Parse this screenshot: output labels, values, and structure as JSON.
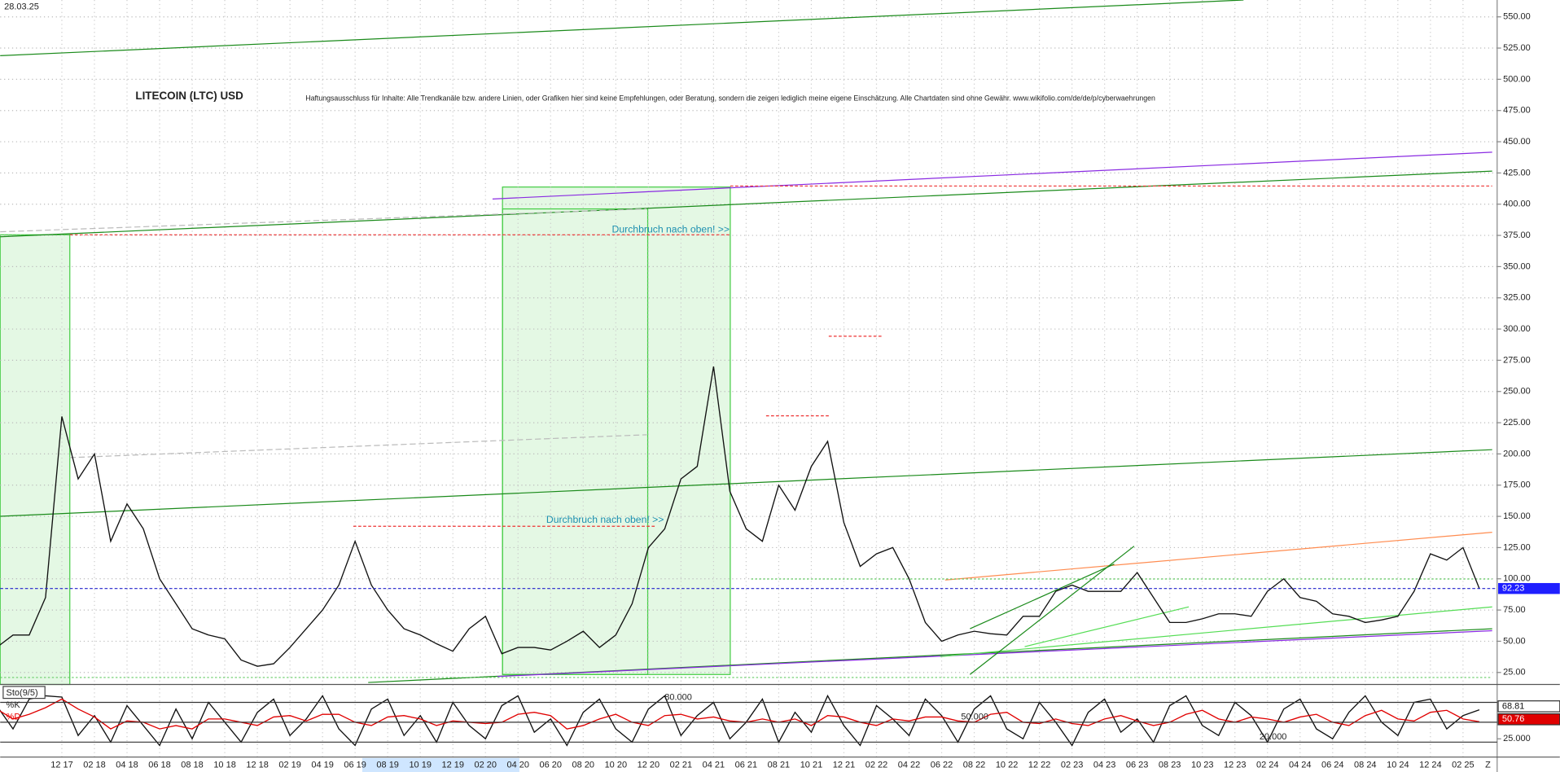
{
  "chart_data": [
    {
      "type": "line",
      "title": "LITECOIN (LTC) USD",
      "subtitle": "Haftungsausschluss für Inhalte: Alle Trendkanäle bzw. andere Linien, oder Grafiken hier sind keine Empfehlungen, oder Beratung, sondern die zeigen lediglich meine eigene Einschätzung. Alle Chartdaten sind ohne Gewähr. www.wikifolio.com/de/de/p/cyberwaehrungen",
      "date": "28.03.25",
      "annotations": [
        "Durchbruch nach oben! >>",
        "Durchbruch nach oben! >>"
      ],
      "end_label": "Z",
      "categories": [
        null,
        null,
        null,
        null,
        "12 17",
        null,
        "02 18",
        null,
        "04 18",
        null,
        "06 18",
        null,
        "08 18",
        null,
        "10 18",
        null,
        "12 18",
        null,
        "02 19",
        null,
        "04 19",
        null,
        "06 19",
        null,
        "08 19",
        null,
        "10 19",
        null,
        "12 19",
        null,
        "02 20",
        null,
        "04 20",
        null,
        "06 20",
        null,
        "08 20",
        null,
        "10 20",
        null,
        "12 20",
        null,
        "02 21",
        null,
        "04 21",
        null,
        "06 21",
        null,
        "08 21",
        null,
        "10 21",
        null,
        "12 21",
        null,
        "02 22",
        null,
        "04 22",
        null,
        "06 22",
        null,
        "08 22",
        null,
        "10 22",
        null,
        "12 22",
        null,
        "02 23",
        null,
        "04 23",
        null,
        "06 23",
        null,
        "08 23",
        null,
        "10 23",
        null,
        "12 23",
        null,
        "02 24",
        null,
        "04 24",
        null,
        "06 24",
        null,
        "08 24",
        null,
        "10 24",
        null,
        "12 24",
        null,
        "02 25",
        null
      ],
      "values": [
        45,
        55,
        55,
        85,
        230,
        180,
        200,
        130,
        160,
        140,
        100,
        80,
        60,
        55,
        52,
        35,
        30,
        32,
        45,
        60,
        75,
        95,
        130,
        95,
        75,
        60,
        55,
        48,
        42,
        60,
        70,
        40,
        45,
        45,
        43,
        50,
        58,
        45,
        55,
        80,
        125,
        140,
        180,
        190,
        270,
        170,
        140,
        130,
        175,
        155,
        190,
        210,
        145,
        110,
        120,
        125,
        100,
        65,
        50,
        55,
        58,
        56,
        55,
        70,
        70,
        90,
        95,
        90,
        90,
        90,
        105,
        85,
        65,
        65,
        68,
        72,
        72,
        70,
        90,
        100,
        85,
        82,
        72,
        70,
        65,
        67,
        70,
        90,
        120,
        115,
        125,
        92.23
      ],
      "color": "#111111",
      "ylim": [
        15.4,
        563.5
      ],
      "yticks": [
        {
          "value": 25,
          "label": "25.00"
        },
        {
          "value": 50,
          "label": "50.00"
        },
        {
          "value": 75,
          "label": "75.00"
        },
        {
          "value": 100,
          "label": "100.00"
        },
        {
          "value": 125,
          "label": "125.00"
        },
        {
          "value": 150,
          "label": "150.00"
        },
        {
          "value": 175,
          "label": "175.00"
        },
        {
          "value": 200,
          "label": "200.00"
        },
        {
          "value": 225,
          "label": "225.00"
        },
        {
          "value": 250,
          "label": "250.00"
        },
        {
          "value": 275,
          "label": "275.00"
        },
        {
          "value": 300,
          "label": "300.00"
        },
        {
          "value": 325,
          "label": "325.00"
        },
        {
          "value": 350,
          "label": "350.00"
        },
        {
          "value": 375,
          "label": "375.00"
        },
        {
          "value": 400,
          "label": "400.00"
        },
        {
          "value": 425,
          "label": "425.00"
        },
        {
          "value": 450,
          "label": "450.00"
        },
        {
          "value": 475,
          "label": "475.00"
        },
        {
          "value": 500,
          "label": "500.00"
        },
        {
          "value": 525,
          "label": "525.00"
        },
        {
          "value": 550,
          "label": "550.00"
        }
      ],
      "grid": true
    },
    {
      "type": "line",
      "title": "Sto(9/5)",
      "ylim": [
        0,
        100
      ],
      "yticks": [
        {
          "value": 25,
          "label": "25.000"
        }
      ],
      "levels": [
        {
          "value": 80,
          "label": "80.000"
        },
        {
          "value": 50,
          "label": "50.000"
        },
        {
          "value": 20,
          "label": "20.000"
        }
      ],
      "series": [
        {
          "name": "%K",
          "color": "#111111",
          "values": [
            75,
            40,
            85,
            90,
            88,
            30,
            60,
            20,
            75,
            45,
            15,
            70,
            25,
            80,
            50,
            20,
            65,
            85,
            30,
            55,
            90,
            40,
            15,
            70,
            85,
            30,
            60,
            20,
            80,
            45,
            25,
            75,
            90,
            35,
            55,
            15,
            65,
            85,
            40,
            20,
            70,
            90,
            30,
            60,
            80,
            25,
            50,
            85,
            20,
            65,
            35,
            90,
            45,
            15,
            75,
            55,
            30,
            85,
            60,
            20,
            70,
            90,
            40,
            25,
            80,
            50,
            15,
            65,
            85,
            35,
            55,
            20,
            75,
            90,
            45,
            30,
            80,
            60,
            20,
            70,
            85,
            40,
            25,
            65,
            90,
            50,
            30,
            80,
            85,
            40,
            60,
            68.81
          ]
        },
        {
          "name": "%D",
          "color": "#e00000",
          "values": [
            70,
            55,
            62,
            72,
            85,
            70,
            58,
            40,
            52,
            50,
            40,
            45,
            40,
            55,
            55,
            50,
            45,
            58,
            60,
            52,
            62,
            62,
            50,
            45,
            58,
            60,
            55,
            45,
            52,
            50,
            48,
            50,
            62,
            65,
            60,
            40,
            45,
            55,
            62,
            50,
            45,
            60,
            62,
            55,
            58,
            52,
            50,
            55,
            50,
            55,
            45,
            60,
            58,
            50,
            45,
            55,
            52,
            58,
            58,
            52,
            50,
            62,
            65,
            50,
            48,
            55,
            48,
            45,
            55,
            60,
            52,
            45,
            50,
            62,
            68,
            55,
            50,
            58,
            55,
            50,
            58,
            62,
            50,
            45,
            60,
            68,
            55,
            52,
            65,
            68,
            55,
            50.76
          ]
        }
      ]
    }
  ]
}
